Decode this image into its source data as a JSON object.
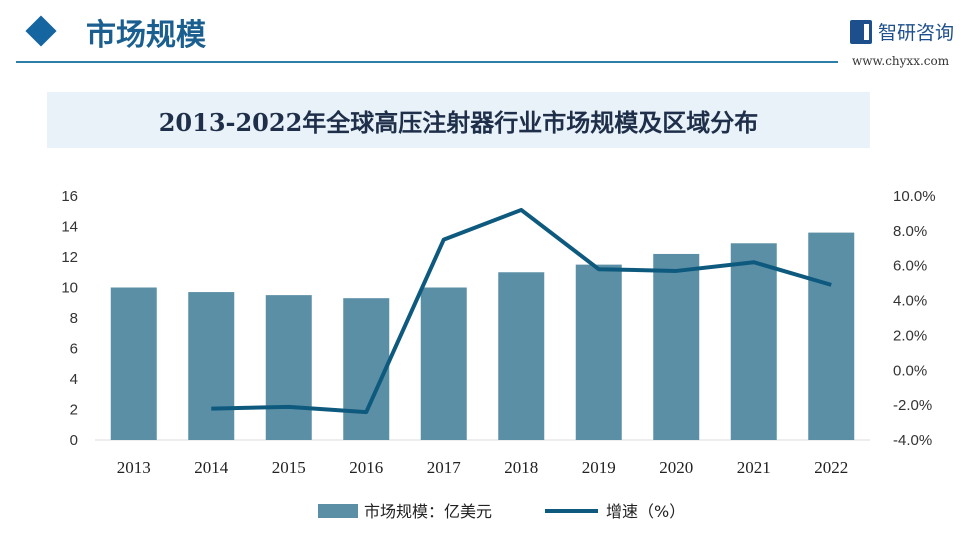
{
  "header": {
    "title": "市场规模",
    "logo_text": "智研咨询",
    "url": "www.chyxx.com"
  },
  "chart_data": {
    "type": "bar+line",
    "title": "2013-2022年全球高压注射器行业市场规模及区域分布",
    "categories": [
      "2013",
      "2014",
      "2015",
      "2016",
      "2017",
      "2018",
      "2019",
      "2020",
      "2021",
      "2022"
    ],
    "series": [
      {
        "name": "市场规模：亿美元",
        "type": "bar",
        "axis": "left",
        "color": "#5b8fa6",
        "values": [
          10.0,
          9.7,
          9.5,
          9.3,
          10.0,
          11.0,
          11.5,
          12.2,
          12.9,
          13.6
        ]
      },
      {
        "name": "增速（%）",
        "type": "line",
        "axis": "right",
        "color": "#0e5a7e",
        "values": [
          null,
          -2.2,
          -2.1,
          -2.4,
          7.5,
          9.2,
          5.8,
          5.7,
          6.2,
          4.9
        ]
      }
    ],
    "y_left": {
      "range": [
        0,
        16
      ],
      "ticks": [
        "0",
        "2",
        "4",
        "6",
        "8",
        "10",
        "12",
        "14",
        "16"
      ]
    },
    "y_right": {
      "range": [
        -4,
        10
      ],
      "ticks": [
        "-4.0%",
        "-2.0%",
        "0.0%",
        "2.0%",
        "4.0%",
        "6.0%",
        "8.0%",
        "10.0%"
      ]
    },
    "grid": false,
    "legend": "bottom"
  }
}
